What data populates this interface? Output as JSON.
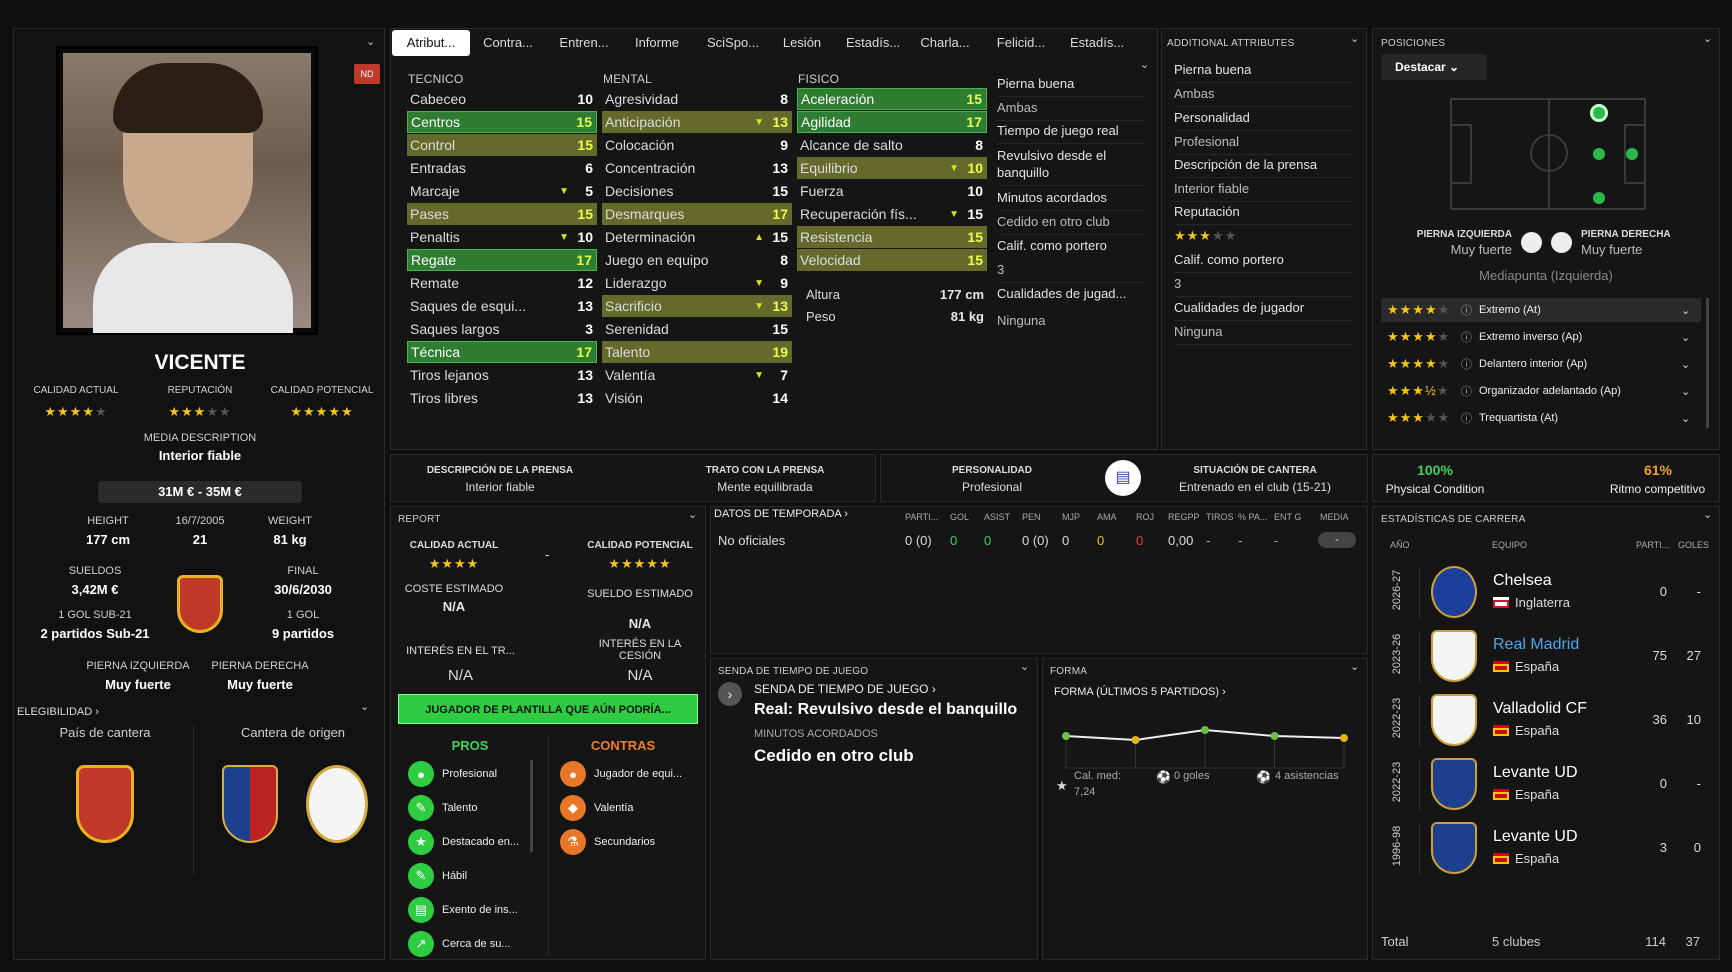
{
  "player": {
    "name": "VICENTE",
    "nd_badge": "ND",
    "ratings": [
      {
        "label": "CALIDAD ACTUAL",
        "stars": "★★★★",
        "empty": "★"
      },
      {
        "label": "REPUTACIÓN",
        "stars": "★★★",
        "empty": "★★"
      },
      {
        "label": "CALIDAD POTENCIAL",
        "stars": "★★★★★",
        "empty": ""
      }
    ],
    "media_description_label": "MEDIA DESCRIPTION",
    "media_description": "Interior fiable",
    "value": "31M € - 35M €",
    "height_label": "HEIGHT",
    "height": "177 cm",
    "dob": "16/7/2005",
    "age": "21",
    "weight_label": "WEIGHT",
    "weight": "81 kg",
    "wage_label": "SUELDOS",
    "wage": "3,42M €",
    "contract_label": "FINAL",
    "contract": "30/6/2030",
    "u21_goals": "1 GOL SUB-21",
    "u21_apps": "2 partidos Sub-21",
    "goals": "1 GOL",
    "apps": "9 partidos",
    "left_foot_label": "PIERNA IZQUIERDA",
    "left_foot": "Muy fuerte",
    "right_foot_label": "PIERNA DERECHA",
    "right_foot": "Muy fuerte",
    "eligibility": "ELEGIBILIDAD",
    "youth_country": "País de cantera",
    "youth_club": "Cantera de origen"
  },
  "tabs": [
    "Atribut...",
    "Contra...",
    "Entren...",
    "Informe",
    "SciSpo...",
    "Lesión",
    "Estadís...",
    "Charla...",
    "Felicid...",
    "Estadís..."
  ],
  "attributes": {
    "tecnico_title": "TECNICO",
    "tecnico": [
      [
        "Cabeceo",
        "10",
        "",
        ""
      ],
      [
        "Centros",
        "15",
        "g",
        ""
      ],
      [
        "Control",
        "15",
        "o",
        ""
      ],
      [
        "Entradas",
        "6",
        "",
        ""
      ],
      [
        "Marcaje",
        "5",
        "",
        "▼"
      ],
      [
        "Pases",
        "15",
        "o",
        ""
      ],
      [
        "Penaltis",
        "10",
        "",
        "▼"
      ],
      [
        "Regate",
        "17",
        "g",
        ""
      ],
      [
        "Remate",
        "12",
        "",
        ""
      ],
      [
        "Saques de esqui...",
        "13",
        "",
        ""
      ],
      [
        "Saques largos",
        "3",
        "",
        ""
      ],
      [
        "Técnica",
        "17",
        "g",
        ""
      ],
      [
        "Tiros lejanos",
        "13",
        "",
        ""
      ],
      [
        "Tiros libres",
        "13",
        "",
        ""
      ]
    ],
    "mental_title": "MENTAL",
    "mental": [
      [
        "Agresividad",
        "8",
        "",
        ""
      ],
      [
        "Anticipación",
        "13",
        "o",
        "▼"
      ],
      [
        "Colocación",
        "9",
        "",
        ""
      ],
      [
        "Concentración",
        "13",
        "",
        ""
      ],
      [
        "Decisiones",
        "15",
        "",
        ""
      ],
      [
        "Desmarques",
        "17",
        "o",
        ""
      ],
      [
        "Determinación",
        "15",
        "",
        "▲"
      ],
      [
        "Juego en equipo",
        "8",
        "",
        ""
      ],
      [
        "Liderazgo",
        "9",
        "",
        "▼"
      ],
      [
        "Sacrificio",
        "13",
        "o",
        "▼"
      ],
      [
        "Serenidad",
        "15",
        "",
        ""
      ],
      [
        "Talento",
        "19",
        "o",
        ""
      ],
      [
        "Valentía",
        "7",
        "",
        "▼"
      ],
      [
        "Visión",
        "14",
        "",
        ""
      ]
    ],
    "fisico_title": "FISICO",
    "fisico": [
      [
        "Aceleración",
        "15",
        "g",
        ""
      ],
      [
        "Agilidad",
        "17",
        "g",
        ""
      ],
      [
        "Alcance de salto",
        "8",
        "",
        ""
      ],
      [
        "Equilibrio",
        "10",
        "o",
        "▼"
      ],
      [
        "Fuerza",
        "10",
        "",
        ""
      ],
      [
        "Recuperación fís...",
        "15",
        "",
        "▼"
      ],
      [
        "Resistencia",
        "15",
        "o",
        ""
      ],
      [
        "Velocidad",
        "15",
        "o",
        ""
      ]
    ],
    "altura_label": "Altura",
    "altura": "177 cm",
    "peso_label": "Peso",
    "peso": "81 kg",
    "extra": [
      "Pierna buena",
      "Ambas",
      "Tiempo de juego real",
      "Revulsivo desde el",
      "banquillo",
      "Minutos acordados",
      "Cedido en otro club",
      "Calif. como portero",
      "3",
      "Cualidades de jugad...",
      "Ninguna"
    ]
  },
  "additional": {
    "title": "ADDITIONAL ATTRIBUTES",
    "items": [
      "Pierna buena",
      "Ambas",
      "Personalidad",
      "Profesional",
      "Descripción de la prensa",
      "Interior fiable",
      "Reputación",
      "",
      "Calif. como portero",
      "3",
      "Cualidades de jugador",
      "Ninguna"
    ],
    "rep_stars": "★★★",
    "rep_empty": "★★"
  },
  "positions": {
    "title": "POSICIONES",
    "dropdown": "Destacar",
    "left_foot_label": "PIERNA IZQUIERDA",
    "left_foot": "Muy fuerte",
    "right_foot_label": "PIERNA DERECHA",
    "right_foot": "Muy fuerte",
    "main_role": "Mediapunta (Izquierda)",
    "roles": [
      {
        "stars": "★★★★",
        "empty": "★",
        "name": "Extremo (At)"
      },
      {
        "stars": "★★★★",
        "empty": "★",
        "name": "Extremo inverso (Ap)"
      },
      {
        "stars": "★★★★",
        "empty": "★",
        "name": "Delantero interior (Ap)"
      },
      {
        "stars": "★★★½",
        "empty": "★",
        "name": "Organizador adelantado (Ap)"
      },
      {
        "stars": "★★★",
        "empty": "★★",
        "name": "Trequartista (At)"
      }
    ]
  },
  "press": {
    "desc_label": "DESCRIPCIÓN DE LA PRENSA",
    "desc": "Interior fiable",
    "handling_label": "TRATO CON LA PRENSA",
    "handling": "Mente equilibrada",
    "personality_label": "PERSONALIDAD",
    "personality": "Profesional",
    "youth_label": "SITUACIÓN DE CANTERA",
    "youth": "Entrenado en el club (15-21)"
  },
  "condition": {
    "physical_pct": "100%",
    "physical_label": "Physical Condition",
    "match_pct": "61%",
    "match_label": "Ritmo competitivo"
  },
  "report": {
    "title": "REPORT",
    "ca_label": "CALIDAD ACTUAL",
    "pa_label": "CALIDAD POTENCIAL",
    "dash": "-",
    "cost_label": "COSTE ESTIMADO",
    "cost": "N/A",
    "wage_label": "SUELDO ESTIMADO",
    "wage": "N/A",
    "transfer_label": "INTERÉS EN EL TR...",
    "transfer": "N/A",
    "loan_label": "INTERÉS EN LA CESIÓN",
    "loan": "N/A",
    "banner": "JUGADOR DE PLANTILLA QUE AÚN PODRÍA...",
    "pros_title": "PROS",
    "cons_title": "CONTRAS",
    "pros": [
      "Profesional",
      "Talento",
      "Destacado en...",
      "Hábil",
      "Exento de ins...",
      "Cerca de su..."
    ],
    "cons": [
      "Jugador de equi...",
      "Valentía",
      "Secundarios"
    ]
  },
  "season": {
    "title": "DATOS DE TEMPORADA",
    "headers": [
      "PARTI...",
      "GOL",
      "ASIST",
      "PEN",
      "MJP",
      "AMA",
      "ROJ",
      "REGPP",
      "TIROS",
      "% PA...",
      "ENT G",
      "MEDIA"
    ],
    "row_label": "No oficiales",
    "row": [
      "0 (0)",
      "0",
      "0",
      "0 (0)",
      "0",
      "0",
      "0",
      "0,00",
      "-",
      "-",
      "-",
      "-"
    ]
  },
  "playtime": {
    "title": "SENDA DE TIEMPO DE JUEGO",
    "sub": "SENDA DE TIEMPO DE JUEGO",
    "value": "Real: Revulsivo desde el banquillo",
    "minutes_label": "MINUTOS ACORDADOS",
    "minutes": "Cedido en otro club"
  },
  "form": {
    "title": "FORMA",
    "sub": "FORMA (ÚLTIMOS 5 PARTIDOS)",
    "avg_label": "Cal. med:",
    "avg": "7,24",
    "goals": "0 goles",
    "assists": "4 asistencias"
  },
  "chart_data": {
    "type": "line",
    "title": "FORMA (ÚLTIMOS 5 PARTIDOS)",
    "x": [
      1,
      2,
      3,
      4,
      5
    ],
    "values": [
      7.2,
      7.0,
      7.5,
      7.2,
      7.1
    ],
    "point_colors": [
      "#6cc04a",
      "#e2b21a",
      "#6cc04a",
      "#6cc04a",
      "#e2b21a"
    ],
    "ylim": [
      6,
      8.5
    ]
  },
  "career": {
    "title": "ESTADÍSTICAS DE CARRERA",
    "headers": [
      "AÑO",
      "EQUIPO",
      "PARTI...",
      "GOLES"
    ],
    "rows": [
      {
        "year": "2026-27",
        "club": "Chelsea",
        "country": "Inglaterra",
        "apps": "0",
        "goals": "-",
        "color": "#ffffff"
      },
      {
        "year": "2023-26",
        "club": "Real Madrid",
        "country": "España",
        "apps": "75",
        "goals": "27",
        "color": "#4aa8e8"
      },
      {
        "year": "2022-23",
        "club": "Valladolid CF",
        "country": "España",
        "apps": "36",
        "goals": "10",
        "color": "#ffffff"
      },
      {
        "year": "2022-23",
        "club": "Levante UD",
        "country": "España",
        "apps": "0",
        "goals": "-",
        "color": "#ffffff"
      },
      {
        "year": "1996-98",
        "club": "Levante UD",
        "country": "España",
        "apps": "3",
        "goals": "0",
        "color": "#ffffff"
      }
    ],
    "total_label": "Total",
    "total_clubs": "5 clubes",
    "total_apps": "114",
    "total_goals": "37"
  }
}
